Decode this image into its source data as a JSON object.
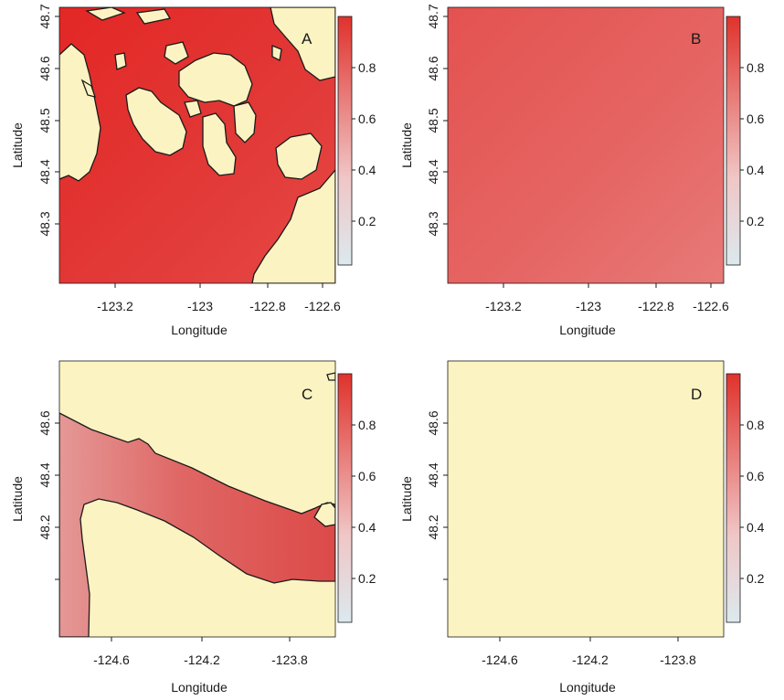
{
  "panels": [
    {
      "letter": "A",
      "x_label": "Longitude",
      "y_label": "Latitude",
      "x_ticks": [
        "-123.2",
        "-123",
        "-122.8",
        "-122.6"
      ],
      "y_ticks": [
        "48.7",
        "48.6",
        "48.5",
        "48.4",
        "48.3"
      ],
      "colorbar_ticks": [
        "0.8",
        "0.6",
        "0.4",
        "0.2"
      ]
    },
    {
      "letter": "B",
      "x_label": "Longitude",
      "y_label": "Latitude",
      "x_ticks": [
        "-123.2",
        "-123",
        "-122.8",
        "-122.6"
      ],
      "y_ticks": [
        "48.7",
        "48.6",
        "48.5",
        "48.4",
        "48.3"
      ],
      "colorbar_ticks": [
        "0.8",
        "0.6",
        "0.4",
        "0.2"
      ]
    },
    {
      "letter": "C",
      "x_label": "Longitude",
      "y_label": "Latitude",
      "x_ticks": [
        "-124.6",
        "-124.2",
        "-123.8"
      ],
      "y_ticks": [
        "48.6",
        "48.4",
        "48.2"
      ],
      "colorbar_ticks": [
        "0.8",
        "0.6",
        "0.4",
        "0.2"
      ]
    },
    {
      "letter": "D",
      "x_label": "Longitude",
      "y_label": "Latitude",
      "x_ticks": [
        "-124.6",
        "-124.2",
        "-123.8"
      ],
      "y_ticks": [
        "48.6",
        "48.4",
        "48.2"
      ],
      "colorbar_ticks": [
        "0.8",
        "0.6",
        "0.4",
        "0.2"
      ]
    }
  ],
  "colors": {
    "land": "#fbf3c1",
    "high_value": "#e0322c",
    "low_value": "#dce9ee",
    "panel_a_water": "#e2393a",
    "panel_b_water": "#e56a68",
    "panel_c_water": "#dc5f5e",
    "panel_d_water": "#e4908e"
  }
}
